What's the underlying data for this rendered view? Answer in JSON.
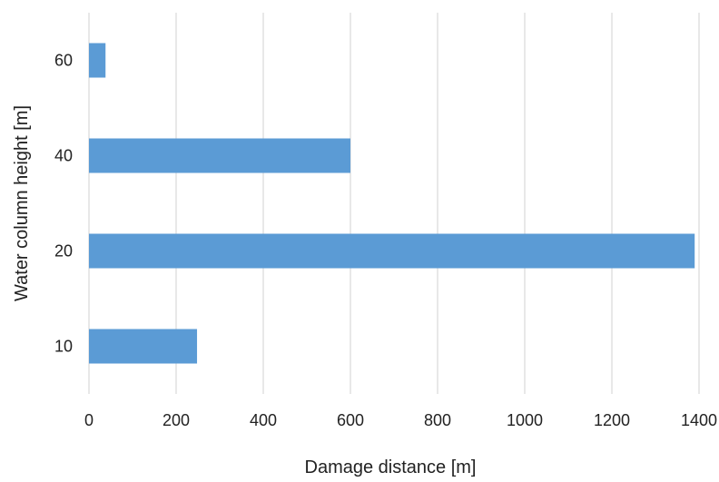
{
  "chart_data": {
    "type": "bar",
    "orientation": "horizontal",
    "categories": [
      "10",
      "20",
      "40",
      "60"
    ],
    "series": [
      {
        "values": [
          248,
          1390,
          600,
          38
        ]
      }
    ],
    "xlabel": "Damage distance [m]",
    "ylabel": "Water column height [m]",
    "xlim": [
      0,
      1400
    ],
    "xticks": [
      "0",
      "200",
      "400",
      "600",
      "800",
      "1000",
      "1200",
      "1400"
    ],
    "grid": "vertical",
    "legend": "none",
    "bar_color": "#5b9bd5",
    "grid_color": "#d9d9d9"
  }
}
